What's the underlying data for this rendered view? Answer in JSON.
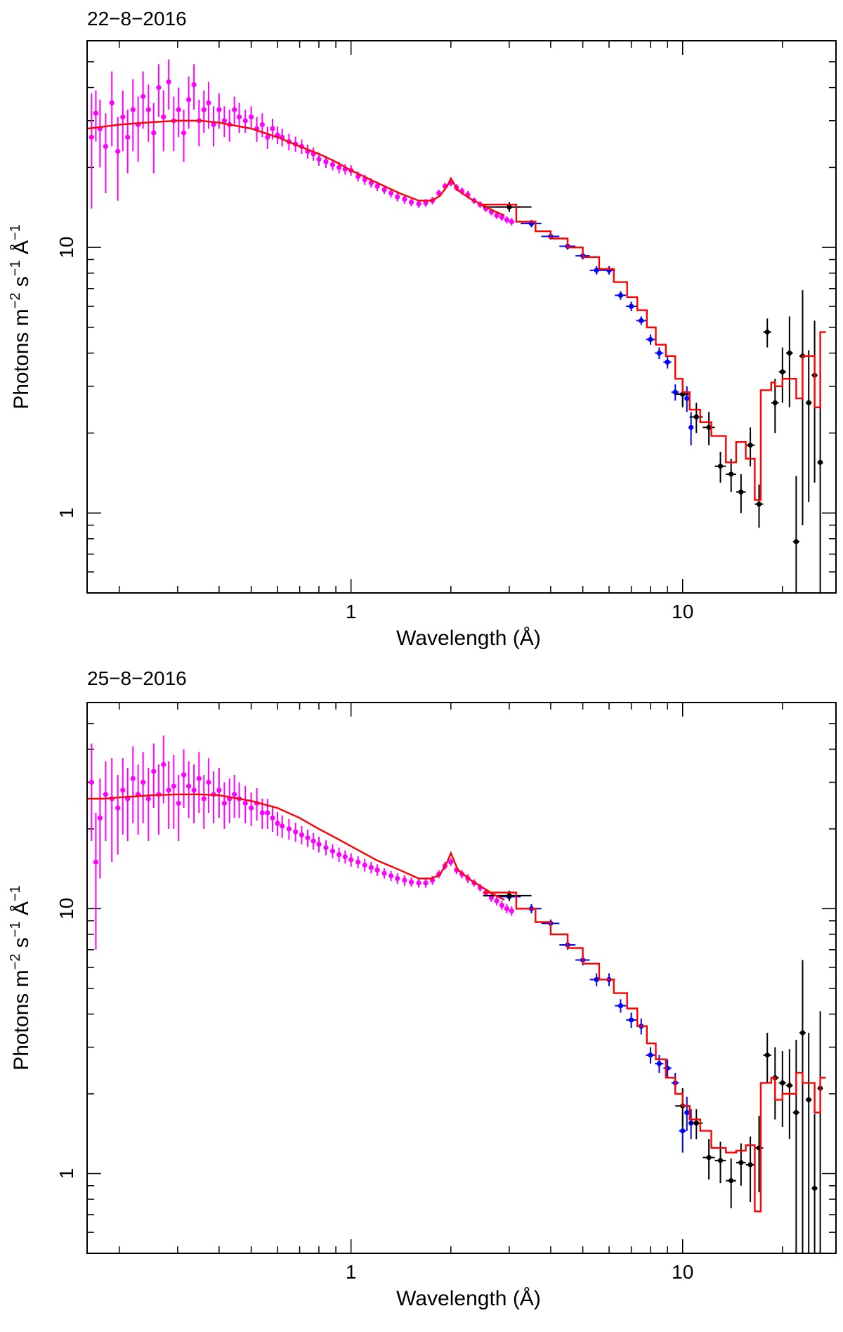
{
  "colors": {
    "grating": "#ff00ff",
    "mid": "#0000ff",
    "soft": "#000000",
    "model": "#ff0000",
    "axes": "#000000"
  },
  "chart_data": [
    {
      "type": "scatter",
      "title": "22−8−2016",
      "xlabel": "Wavelength (Å)",
      "ylabel_parts": [
        "Photons m",
        "−2",
        " s",
        "−1",
        " Å",
        "−1"
      ],
      "xscale": "log",
      "yscale": "log",
      "xlim": [
        0.16,
        29
      ],
      "ylim": [
        0.5,
        60
      ],
      "x_ticks": [
        {
          "v": 1,
          "label": "1"
        },
        {
          "v": 10,
          "label": "10"
        }
      ],
      "y_ticks": [
        {
          "v": 1,
          "label": "1"
        },
        {
          "v": 10,
          "label": "10"
        }
      ],
      "model": {
        "name": "model",
        "x": [
          0.16,
          0.18,
          0.2,
          0.25,
          0.3,
          0.35,
          0.4,
          0.5,
          0.6,
          0.7,
          0.8,
          0.9,
          1.0,
          1.2,
          1.4,
          1.6,
          1.75,
          1.85,
          1.95,
          2.0,
          2.1,
          2.3,
          2.5,
          2.7,
          2.9
        ],
        "y": [
          28,
          28.5,
          29,
          29.6,
          30,
          30,
          29.5,
          28,
          26,
          24,
          22.5,
          21,
          19.5,
          17.5,
          16,
          15,
          15,
          15.6,
          17,
          18.2,
          16.4,
          15.2,
          14.4,
          13.7,
          13.2
        ]
      },
      "model_steps": {
        "edges": [
          2.5,
          3.15,
          3.6,
          4.0,
          4.5,
          5.0,
          5.6,
          6.2,
          6.8,
          7.3,
          7.8,
          8.3,
          8.9,
          9.5,
          10.0,
          10.5,
          11.3,
          12.2,
          13.5,
          14.5,
          15.5,
          16.5,
          17.2,
          18.5,
          19.0,
          20.0,
          22.0,
          23.0,
          25.0,
          26.0
        ],
        "y": [
          14.5,
          12.5,
          11.5,
          10.8,
          10.0,
          9.2,
          8.3,
          7.4,
          6.5,
          5.8,
          5.0,
          4.3,
          3.9,
          3.2,
          2.85,
          2.45,
          2.2,
          1.95,
          1.55,
          1.85,
          1.6,
          1.12,
          2.9,
          3.1,
          3.0,
          3.2,
          2.7,
          3.9,
          2.5,
          4.8
        ]
      },
      "series": [
        {
          "name": "grating",
          "x": [
            0.165,
            0.17,
            0.175,
            0.182,
            0.19,
            0.198,
            0.205,
            0.212,
            0.22,
            0.228,
            0.236,
            0.245,
            0.254,
            0.263,
            0.272,
            0.282,
            0.292,
            0.302,
            0.313,
            0.324,
            0.336,
            0.348,
            0.36,
            0.372,
            0.385,
            0.4,
            0.415,
            0.43,
            0.445,
            0.46,
            0.48,
            0.5,
            0.52,
            0.54,
            0.56,
            0.58,
            0.6,
            0.62,
            0.65,
            0.68,
            0.71,
            0.74,
            0.77,
            0.8,
            0.84,
            0.88,
            0.92,
            0.96,
            1.0,
            1.05,
            1.1,
            1.15,
            1.2,
            1.26,
            1.32,
            1.38,
            1.45,
            1.52,
            1.6,
            1.68,
            1.76,
            1.84,
            1.92,
            2.0,
            2.08,
            2.16,
            2.25,
            2.35,
            2.45,
            2.55,
            2.65,
            2.75,
            2.85,
            2.95,
            3.05
          ],
          "y": [
            26,
            32,
            28,
            24,
            35,
            23,
            31,
            26,
            33,
            29,
            37,
            33,
            27,
            40,
            31,
            42,
            30,
            33,
            27,
            36,
            41,
            30,
            33,
            35,
            29,
            33,
            30,
            29,
            33,
            31,
            30,
            31,
            28,
            29,
            26,
            28,
            26.5,
            26,
            25,
            24.5,
            24,
            23,
            22.5,
            21.5,
            21,
            20.5,
            20,
            19.7,
            19.5,
            18.5,
            18,
            17.5,
            17,
            16.5,
            16,
            15.5,
            15.2,
            14.8,
            14.6,
            14.7,
            15,
            16,
            17,
            17.5,
            16.8,
            16.3,
            15.8,
            15,
            14.5,
            14,
            13.6,
            13.2,
            13,
            12.7,
            12.5
          ],
          "err": [
            12,
            7,
            8,
            8,
            11,
            8,
            8,
            7,
            10,
            8,
            9,
            8,
            8,
            9,
            8,
            9,
            7,
            7,
            6,
            8,
            8,
            6,
            6,
            7,
            5,
            5,
            4,
            4,
            4,
            4,
            3,
            3,
            3,
            3,
            2.5,
            2.5,
            2,
            2,
            1.8,
            1.6,
            1.5,
            1.4,
            1.3,
            1.2,
            1.1,
            1.0,
            1.0,
            0.9,
            0.9,
            0.8,
            0.8,
            0.7,
            0.7,
            0.6,
            0.6,
            0.6,
            0.6,
            0.5,
            0.5,
            0.5,
            0.5,
            0.5,
            0.5,
            0.5,
            0.5,
            0.5,
            0.5,
            0.4,
            0.4,
            0.4,
            0.4,
            0.4,
            0.4,
            0.4,
            0.4
          ]
        },
        {
          "name": "mid",
          "x": [
            3.0,
            3.5,
            4.0,
            4.5,
            5.0,
            5.5,
            6.0,
            6.5,
            7.0,
            7.5,
            8.0,
            8.5,
            9.0,
            9.5,
            10.0,
            10.3,
            10.6
          ],
          "y": [
            14.2,
            12.3,
            11.0,
            10.1,
            9.3,
            8.2,
            8.2,
            6.6,
            6.0,
            5.3,
            4.5,
            4.0,
            3.7,
            2.85,
            2.8,
            2.7,
            2.1
          ],
          "err": [
            0.4,
            0.4,
            0.3,
            0.3,
            0.3,
            0.3,
            0.3,
            0.25,
            0.25,
            0.2,
            0.2,
            0.2,
            0.2,
            0.2,
            0.25,
            0.3,
            0.3
          ],
          "xerr": [
            0.25,
            0.25,
            0.25,
            0.25,
            0.25,
            0.25,
            0.25,
            0.25,
            0.25,
            0.25,
            0.25,
            0.25,
            0.25,
            0.25,
            0.25,
            0.15,
            0.15
          ]
        },
        {
          "name": "soft",
          "x": [
            3.0,
            10.0,
            11.0,
            12.0,
            13.0,
            14.0,
            15.0,
            16.0,
            17.0,
            18.0,
            19.0,
            20.0,
            21.0,
            22.0,
            23.0,
            24.0,
            25.0,
            26.0
          ],
          "y": [
            14.2,
            2.8,
            2.3,
            2.1,
            1.5,
            1.4,
            1.2,
            1.8,
            1.08,
            4.8,
            2.6,
            3.4,
            4.0,
            0.78,
            3.9,
            2.6,
            3.3,
            1.55
          ],
          "err": [
            0.6,
            0.3,
            0.3,
            0.3,
            0.2,
            0.2,
            0.2,
            0.3,
            0.2,
            0.6,
            0.6,
            0.8,
            1.5,
            0.6,
            3.0,
            1.5,
            2.0,
            1.4
          ],
          "xerr": [
            0.5,
            0.5,
            0.5,
            0.5,
            0.5,
            0.5,
            0.5,
            0.5,
            0.5,
            0.5,
            0.5,
            0.5,
            0.5,
            0.5,
            0.5,
            0.5,
            0.5,
            0.5
          ]
        }
      ]
    },
    {
      "type": "scatter",
      "title": "25−8−2016",
      "xlabel": "Wavelength (Å)",
      "ylabel_parts": [
        "Photons m",
        "−2",
        " s",
        "−1",
        " Å",
        "−1"
      ],
      "xscale": "log",
      "yscale": "log",
      "xlim": [
        0.16,
        29
      ],
      "ylim": [
        0.5,
        60
      ],
      "x_ticks": [
        {
          "v": 1,
          "label": "1"
        },
        {
          "v": 10,
          "label": "10"
        }
      ],
      "y_ticks": [
        {
          "v": 1,
          "label": "1"
        },
        {
          "v": 10,
          "label": "10"
        }
      ],
      "model": {
        "name": "model",
        "x": [
          0.16,
          0.18,
          0.2,
          0.25,
          0.3,
          0.35,
          0.4,
          0.5,
          0.6,
          0.7,
          0.8,
          0.9,
          1.0,
          1.2,
          1.4,
          1.6,
          1.75,
          1.85,
          1.95,
          2.0,
          2.1,
          2.3,
          2.5,
          2.7,
          2.9
        ],
        "y": [
          26,
          26,
          26.3,
          26.8,
          27,
          27,
          26.8,
          25.5,
          24,
          22,
          20,
          18.5,
          17.2,
          15.2,
          14,
          13,
          13,
          13.4,
          15,
          16.2,
          14,
          12.8,
          12,
          11.3,
          10.8
        ]
      },
      "model_steps": {
        "edges": [
          2.5,
          3.15,
          3.6,
          4.0,
          4.5,
          5.0,
          5.6,
          6.2,
          6.8,
          7.3,
          7.8,
          8.3,
          8.9,
          9.5,
          10.0,
          10.5,
          11.3,
          12.2,
          13.5,
          14.5,
          15.5,
          16.5,
          17.2,
          18.5,
          19.0,
          20.0,
          22.0,
          23.0,
          25.0,
          26.0
        ],
        "y": [
          11.5,
          10.0,
          8.9,
          8.0,
          7.1,
          6.2,
          5.4,
          4.8,
          4.2,
          3.6,
          3.1,
          2.7,
          2.3,
          2.0,
          1.8,
          1.6,
          1.45,
          1.25,
          1.2,
          1.22,
          1.28,
          0.72,
          2.2,
          2.3,
          1.9,
          2.0,
          2.4,
          2.2,
          1.7,
          2.3
        ]
      },
      "series": [
        {
          "name": "grating",
          "x": [
            0.165,
            0.17,
            0.175,
            0.182,
            0.19,
            0.198,
            0.205,
            0.212,
            0.22,
            0.228,
            0.236,
            0.245,
            0.254,
            0.263,
            0.272,
            0.282,
            0.292,
            0.302,
            0.313,
            0.324,
            0.336,
            0.348,
            0.36,
            0.372,
            0.385,
            0.4,
            0.415,
            0.43,
            0.445,
            0.46,
            0.48,
            0.5,
            0.52,
            0.54,
            0.56,
            0.58,
            0.6,
            0.62,
            0.65,
            0.68,
            0.71,
            0.74,
            0.77,
            0.8,
            0.84,
            0.88,
            0.92,
            0.96,
            1.0,
            1.05,
            1.1,
            1.15,
            1.2,
            1.26,
            1.32,
            1.38,
            1.45,
            1.52,
            1.6,
            1.68,
            1.76,
            1.84,
            1.92,
            2.0,
            2.08,
            2.16,
            2.25,
            2.35,
            2.45,
            2.55,
            2.65,
            2.75,
            2.85,
            2.95,
            3.05
          ],
          "y": [
            30,
            15,
            22,
            27,
            26,
            24,
            28,
            26,
            31,
            27,
            30,
            26,
            33,
            27,
            35,
            28,
            29,
            25,
            32,
            29,
            28,
            31,
            26,
            30,
            27,
            28,
            25,
            26,
            27,
            26,
            25,
            24,
            25,
            23,
            23,
            22,
            21,
            20.5,
            20,
            19.5,
            19,
            18.5,
            18,
            17.5,
            17,
            16.5,
            16,
            15.7,
            15.3,
            15,
            14.6,
            14.3,
            14,
            13.6,
            13.3,
            13,
            12.8,
            12.6,
            12.5,
            12.5,
            12.8,
            13.5,
            14.5,
            15,
            14,
            13.5,
            13,
            12.5,
            12,
            11.5,
            11,
            10.7,
            10.3,
            10,
            9.8
          ],
          "err": [
            12,
            8,
            9,
            9,
            11,
            8,
            9,
            8,
            10,
            8,
            9,
            8,
            9,
            8,
            10,
            8,
            9,
            7,
            8,
            7,
            7,
            8,
            6,
            7,
            6,
            6,
            5,
            5,
            5,
            4,
            4,
            3.5,
            3.5,
            3,
            3,
            2.5,
            2.2,
            2,
            1.8,
            1.6,
            1.5,
            1.4,
            1.3,
            1.2,
            1.1,
            1.0,
            1.0,
            0.9,
            0.9,
            0.8,
            0.8,
            0.7,
            0.7,
            0.6,
            0.6,
            0.6,
            0.6,
            0.5,
            0.5,
            0.5,
            0.5,
            0.5,
            0.5,
            0.5,
            0.5,
            0.5,
            0.5,
            0.4,
            0.4,
            0.4,
            0.4,
            0.4,
            0.4,
            0.4,
            0.4
          ]
        },
        {
          "name": "mid",
          "x": [
            3.0,
            3.5,
            4.0,
            4.5,
            5.0,
            5.5,
            6.0,
            6.5,
            7.0,
            7.5,
            8.0,
            8.5,
            9.0,
            9.5,
            10.0,
            10.3,
            10.6
          ],
          "y": [
            11.1,
            10.0,
            8.8,
            7.3,
            6.4,
            5.4,
            5.4,
            4.3,
            3.8,
            3.6,
            2.8,
            2.6,
            2.5,
            2.2,
            1.45,
            1.7,
            1.55
          ],
          "err": [
            0.4,
            0.4,
            0.3,
            0.3,
            0.3,
            0.3,
            0.3,
            0.25,
            0.25,
            0.25,
            0.2,
            0.2,
            0.2,
            0.2,
            0.25,
            0.25,
            0.2
          ],
          "xerr": [
            0.25,
            0.25,
            0.25,
            0.25,
            0.25,
            0.25,
            0.25,
            0.25,
            0.25,
            0.25,
            0.25,
            0.25,
            0.25,
            0.25,
            0.25,
            0.15,
            0.15
          ]
        },
        {
          "name": "soft",
          "x": [
            3.0,
            10.0,
            11.0,
            12.0,
            13.0,
            14.0,
            15.0,
            16.0,
            17.0,
            18.0,
            19.0,
            20.0,
            21.0,
            22.0,
            23.0,
            24.0,
            25.0,
            26.0
          ],
          "y": [
            11.2,
            1.8,
            1.55,
            1.15,
            1.12,
            0.94,
            1.1,
            1.08,
            1.25,
            2.8,
            2.3,
            2.2,
            2.15,
            1.7,
            3.4,
            1.9,
            0.88,
            2.1
          ],
          "err": [
            0.5,
            0.3,
            0.2,
            0.2,
            0.2,
            0.2,
            0.2,
            0.3,
            0.4,
            0.6,
            0.7,
            0.7,
            0.8,
            1.5,
            3.0,
            1.5,
            0.8,
            2.0
          ],
          "xerr": [
            0.5,
            0.5,
            0.5,
            0.5,
            0.5,
            0.5,
            0.5,
            0.5,
            0.5,
            0.5,
            0.5,
            0.5,
            0.5,
            0.5,
            0.5,
            0.5,
            0.5,
            0.5
          ]
        }
      ]
    }
  ]
}
